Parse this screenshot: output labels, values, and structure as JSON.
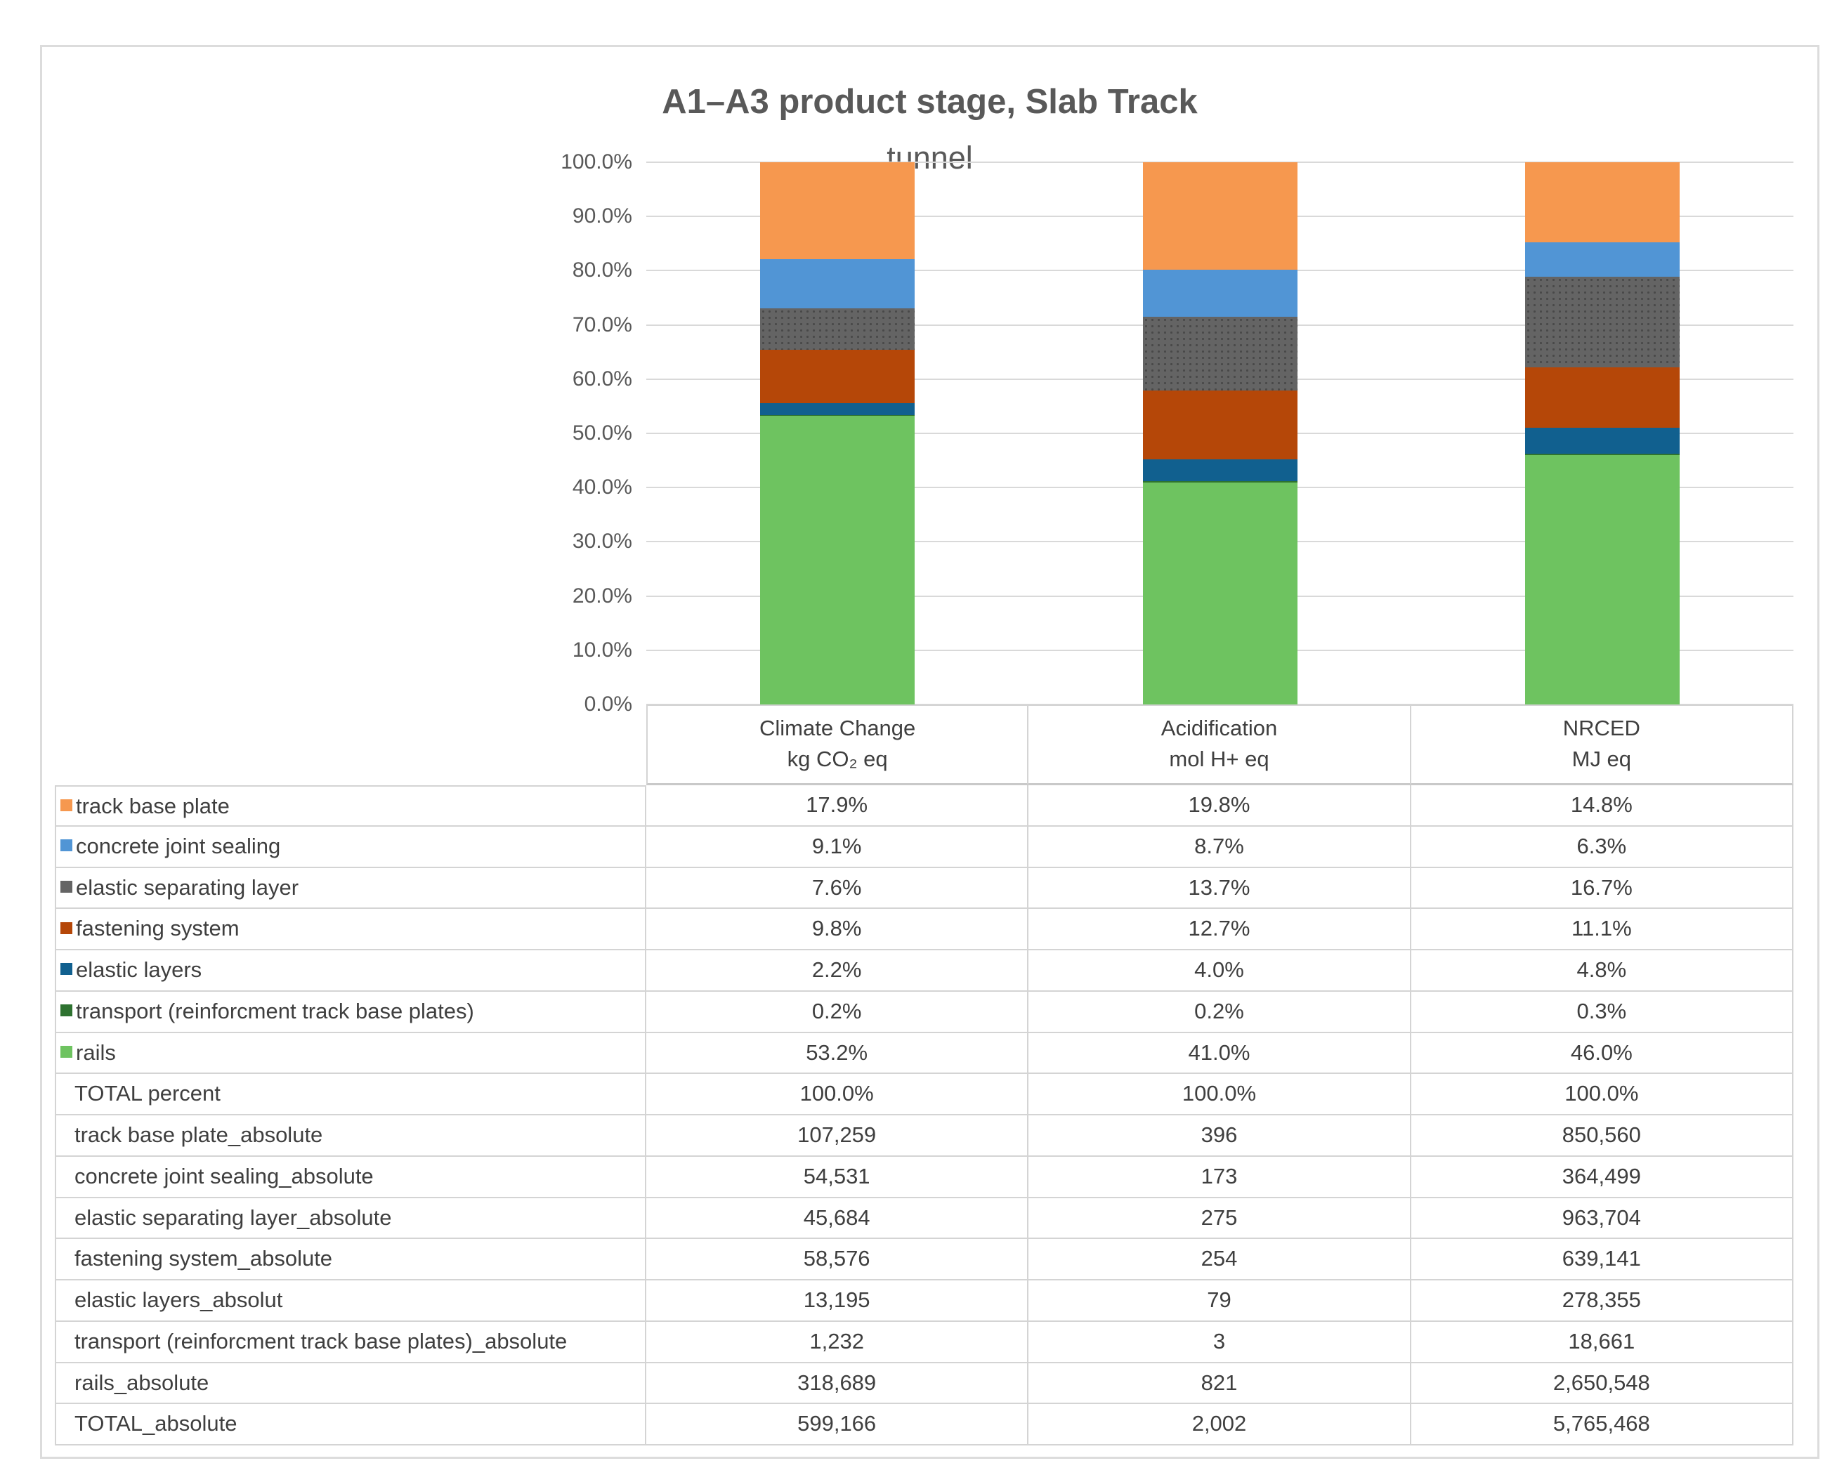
{
  "chart_data": {
    "type": "bar",
    "stacked": true,
    "title": "A1–A3 product stage, Slab Track",
    "subtitle": "tunnel",
    "categories": [
      "Climate Change",
      "Acidification",
      "NRCED"
    ],
    "category_units": [
      "kg CO₂ eq",
      "mol H+ eq",
      "MJ eq"
    ],
    "ylim": [
      0,
      100
    ],
    "y_ticks": [
      "0.0%",
      "10.0%",
      "20.0%",
      "30.0%",
      "40.0%",
      "50.0%",
      "60.0%",
      "70.0%",
      "80.0%",
      "90.0%",
      "100.0%"
    ],
    "grid": true,
    "legend_position": "table-rows-left",
    "stack_note": "series listed top-of-bar first; bars stack bottom-up in reverse order",
    "series": [
      {
        "name": "track base plate",
        "color": "#F6984F",
        "percents": [
          "17.9%",
          "19.8%",
          "14.8%"
        ]
      },
      {
        "name": "concrete joint sealing",
        "color": "#5195D5",
        "percents": [
          "9.1%",
          "8.7%",
          "6.3%"
        ]
      },
      {
        "name": "elastic separating layer",
        "color": "#646464",
        "pattern": "dots",
        "percents": [
          "7.6%",
          "13.7%",
          "16.7%"
        ]
      },
      {
        "name": "fastening system",
        "color": "#B54708",
        "percents": [
          "9.8%",
          "12.7%",
          "11.1%"
        ]
      },
      {
        "name": "elastic layers",
        "color": "#11608F",
        "percents": [
          "2.2%",
          "4.0%",
          "4.8%"
        ]
      },
      {
        "name": "transport (reinforcment track base plates)",
        "color": "#2E7230",
        "percents": [
          "0.2%",
          "0.2%",
          "0.3%"
        ]
      },
      {
        "name": "rails",
        "color": "#6EC360",
        "percents": [
          "53.2%",
          "41.0%",
          "46.0%"
        ]
      }
    ],
    "totals_percent_row": {
      "label": "TOTAL percent",
      "values": [
        "100.0%",
        "100.0%",
        "100.0%"
      ]
    },
    "absolute_rows": [
      {
        "label": "track base plate_absolute",
        "values": [
          "107,259",
          "396",
          "850,560"
        ]
      },
      {
        "label": "concrete joint sealing_absolute",
        "values": [
          "54,531",
          "173",
          "364,499"
        ]
      },
      {
        "label": "elastic separating layer_absolute",
        "values": [
          "45,684",
          "275",
          "963,704"
        ]
      },
      {
        "label": "fastening system_absolute",
        "values": [
          "58,576",
          "254",
          "639,141"
        ]
      },
      {
        "label": "elastic layers_absolut",
        "values": [
          "13,195",
          "79",
          "278,355"
        ]
      },
      {
        "label": "transport (reinforcment track base plates)_absolute",
        "values": [
          "1,232",
          "3",
          "18,661"
        ]
      },
      {
        "label": "rails_absolute",
        "values": [
          "318,689",
          "821",
          "2,650,548"
        ]
      }
    ],
    "total_absolute_row": {
      "label": "TOTAL_absolute",
      "values": [
        "599,166",
        "2,002",
        "5,765,468"
      ]
    }
  }
}
